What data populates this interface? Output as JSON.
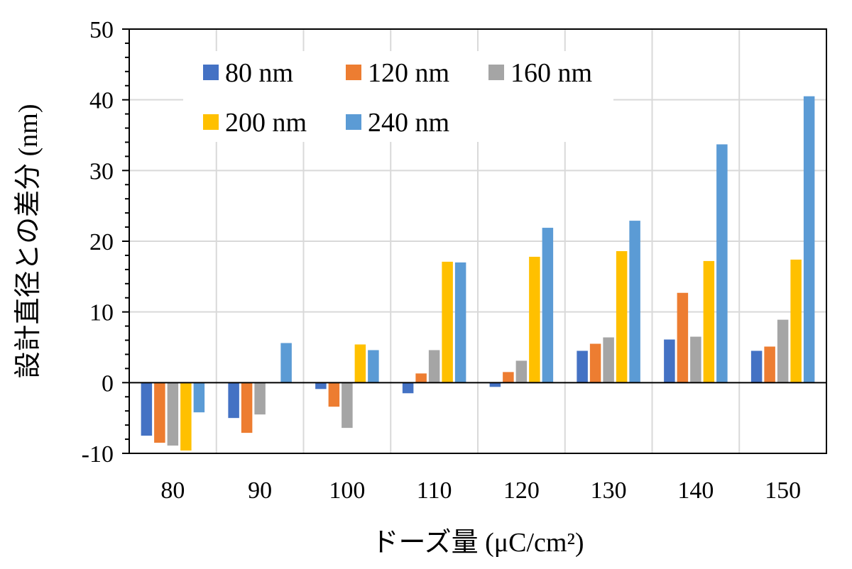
{
  "chart_data": {
    "type": "bar",
    "title": "",
    "xlabel": "ドーズ量 (μC/cm²)",
    "ylabel": "設計直径との差分 (nm)",
    "categories": [
      "80",
      "90",
      "100",
      "110",
      "120",
      "130",
      "140",
      "150"
    ],
    "ylim": [
      -10,
      50
    ],
    "yticks": [
      -10,
      0,
      10,
      20,
      30,
      40,
      50
    ],
    "ytick_labels": [
      "-10",
      "0",
      "10",
      "20",
      "30",
      "40",
      "50"
    ],
    "grid": true,
    "legend": {
      "placement": "top-left inside",
      "columns": 3
    },
    "series": [
      {
        "name": "80 nm",
        "color": "#4472C4",
        "values": [
          -7.5,
          -5.0,
          -0.9,
          -1.5,
          -0.6,
          4.5,
          6.1,
          4.5
        ]
      },
      {
        "name": "120 nm",
        "color": "#ED7D31",
        "values": [
          -8.5,
          -7.1,
          -3.4,
          1.3,
          1.5,
          5.5,
          12.7,
          5.1
        ]
      },
      {
        "name": "160 nm",
        "color": "#A5A5A5",
        "values": [
          -8.9,
          -4.5,
          -6.4,
          4.6,
          3.1,
          6.4,
          6.5,
          8.9
        ]
      },
      {
        "name": "200 nm",
        "color": "#FFC000",
        "values": [
          -9.6,
          0.0,
          5.4,
          17.1,
          17.8,
          18.6,
          17.2,
          17.4
        ]
      },
      {
        "name": "240 nm",
        "color": "#5B9BD5",
        "values": [
          -4.2,
          5.6,
          4.6,
          17.0,
          21.9,
          22.9,
          33.7,
          40.5
        ]
      }
    ]
  }
}
